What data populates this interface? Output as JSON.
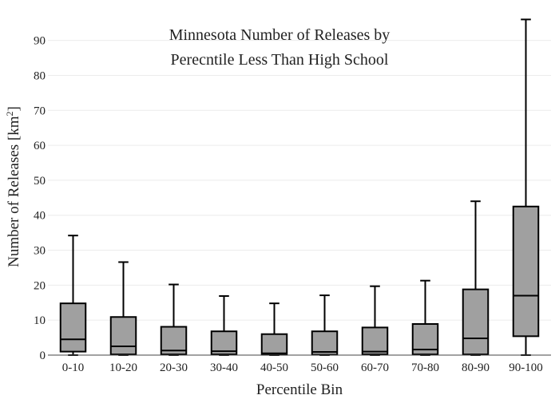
{
  "chart_data": {
    "type": "box",
    "title_lines": [
      "Minnesota Number of Releases by",
      "Perecntile Less Than High School"
    ],
    "xlabel": "Percentile Bin",
    "ylabel_main": "Number of Releases  [km",
    "ylabel_sup": "2",
    "ylabel_end": "]",
    "ylim": [
      0,
      97
    ],
    "yticks": [
      0,
      10,
      20,
      30,
      40,
      50,
      60,
      70,
      80,
      90
    ],
    "grid": true,
    "box_color": "#a0a0a0",
    "categories": [
      "0-10",
      "10-20",
      "20-30",
      "30-40",
      "40-50",
      "50-60",
      "60-70",
      "70-80",
      "80-90",
      "90-100"
    ],
    "boxes": [
      {
        "min": 0,
        "q1": 1,
        "median": 4.5,
        "q3": 14.8,
        "max": 34.2
      },
      {
        "min": 0,
        "q1": 0.2,
        "median": 2.5,
        "q3": 10.9,
        "max": 26.6
      },
      {
        "min": 0,
        "q1": 0.2,
        "median": 1.3,
        "q3": 8.1,
        "max": 20.2
      },
      {
        "min": 0,
        "q1": 0.2,
        "median": 1.1,
        "q3": 6.8,
        "max": 16.9
      },
      {
        "min": 0,
        "q1": 0.1,
        "median": 0.5,
        "q3": 6.0,
        "max": 14.8
      },
      {
        "min": 0,
        "q1": 0.1,
        "median": 0.9,
        "q3": 6.8,
        "max": 17.1
      },
      {
        "min": 0,
        "q1": 0.2,
        "median": 1.0,
        "q3": 7.9,
        "max": 19.7
      },
      {
        "min": 0,
        "q1": 0.2,
        "median": 1.6,
        "q3": 8.9,
        "max": 21.3
      },
      {
        "min": 0,
        "q1": 0.2,
        "median": 4.8,
        "q3": 18.8,
        "max": 44.0
      },
      {
        "min": 0,
        "q1": 5.4,
        "median": 17.0,
        "q3": 42.5,
        "max": 96.0
      }
    ]
  }
}
